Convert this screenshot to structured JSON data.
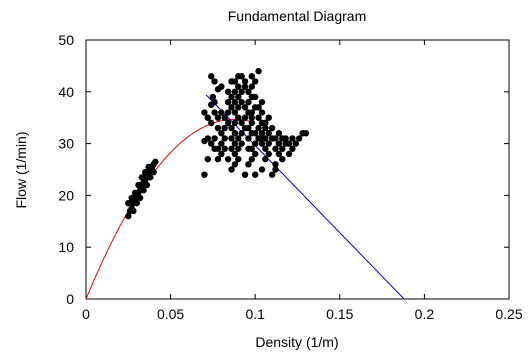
{
  "chart_data": {
    "type": "scatter",
    "title": "Fundamental Diagram",
    "xlabel": "Density (1/m)",
    "ylabel": "Flow (1/min)",
    "xlim": [
      0,
      0.25
    ],
    "ylim": [
      0,
      50
    ],
    "xticks": [
      "0",
      "0.05",
      "0.1",
      "0.15",
      "0.2",
      "0.25"
    ],
    "yticks": [
      "0",
      "10",
      "20",
      "30",
      "40",
      "50"
    ],
    "grid": false,
    "legend": "none",
    "colors": {
      "points": "#000000",
      "fit_free": "#ff0000",
      "fit_congested": "#0000ff"
    },
    "series": [
      {
        "kind": "scatter",
        "points": [
          [
            0.025,
            16
          ],
          [
            0.026,
            17
          ],
          [
            0.027,
            17.5
          ],
          [
            0.028,
            18.5
          ],
          [
            0.029,
            19
          ],
          [
            0.03,
            20
          ],
          [
            0.031,
            20.5
          ],
          [
            0.032,
            21
          ],
          [
            0.033,
            22
          ],
          [
            0.034,
            22.5
          ],
          [
            0.035,
            23
          ],
          [
            0.036,
            24
          ],
          [
            0.037,
            24.5
          ],
          [
            0.038,
            25
          ],
          [
            0.039,
            25.5
          ],
          [
            0.04,
            26
          ],
          [
            0.041,
            26.5
          ],
          [
            0.025,
            18.5
          ],
          [
            0.027,
            19.5
          ],
          [
            0.029,
            20.5
          ],
          [
            0.031,
            22
          ],
          [
            0.033,
            23.5
          ],
          [
            0.035,
            24.5
          ],
          [
            0.037,
            25.5
          ],
          [
            0.039,
            25.5
          ],
          [
            0.028,
            17
          ],
          [
            0.03,
            18.5
          ],
          [
            0.032,
            19.5
          ],
          [
            0.034,
            21
          ],
          [
            0.036,
            22
          ],
          [
            0.038,
            23.5
          ],
          [
            0.04,
            24.5
          ],
          [
            0.07,
            24
          ],
          [
            0.072,
            27
          ],
          [
            0.07,
            30.5
          ],
          [
            0.072,
            31
          ],
          [
            0.074,
            34
          ],
          [
            0.072,
            35
          ],
          [
            0.07,
            36
          ],
          [
            0.074,
            37.5
          ],
          [
            0.076,
            38
          ],
          [
            0.075,
            39
          ],
          [
            0.078,
            27
          ],
          [
            0.08,
            28
          ],
          [
            0.078,
            29
          ],
          [
            0.08,
            30
          ],
          [
            0.082,
            31
          ],
          [
            0.08,
            32
          ],
          [
            0.082,
            33
          ],
          [
            0.084,
            34
          ],
          [
            0.082,
            35
          ],
          [
            0.084,
            36
          ],
          [
            0.086,
            37
          ],
          [
            0.084,
            38
          ],
          [
            0.086,
            39
          ],
          [
            0.088,
            40
          ],
          [
            0.09,
            41
          ],
          [
            0.088,
            42
          ],
          [
            0.078,
            40.5
          ],
          [
            0.076,
            42
          ],
          [
            0.074,
            43
          ],
          [
            0.08,
            41
          ],
          [
            0.076,
            36
          ],
          [
            0.078,
            33
          ],
          [
            0.076,
            31
          ],
          [
            0.078,
            35
          ],
          [
            0.086,
            25
          ],
          [
            0.088,
            26
          ],
          [
            0.09,
            27
          ],
          [
            0.088,
            28
          ],
          [
            0.09,
            29
          ],
          [
            0.092,
            30
          ],
          [
            0.09,
            31
          ],
          [
            0.092,
            32
          ],
          [
            0.094,
            33
          ],
          [
            0.092,
            34
          ],
          [
            0.094,
            35
          ],
          [
            0.096,
            36
          ],
          [
            0.094,
            37
          ],
          [
            0.096,
            38
          ],
          [
            0.098,
            39
          ],
          [
            0.096,
            40
          ],
          [
            0.098,
            41
          ],
          [
            0.1,
            42
          ],
          [
            0.098,
            43
          ],
          [
            0.092,
            43
          ],
          [
            0.094,
            42
          ],
          [
            0.09,
            43
          ],
          [
            0.096,
            26
          ],
          [
            0.098,
            27
          ],
          [
            0.1,
            28
          ],
          [
            0.098,
            29
          ],
          [
            0.1,
            30
          ],
          [
            0.102,
            31
          ],
          [
            0.1,
            32
          ],
          [
            0.102,
            33
          ],
          [
            0.104,
            34
          ],
          [
            0.102,
            35
          ],
          [
            0.104,
            36
          ],
          [
            0.102,
            37
          ],
          [
            0.104,
            38
          ],
          [
            0.1,
            39
          ],
          [
            0.102,
            44
          ],
          [
            0.084,
            27
          ],
          [
            0.086,
            29
          ],
          [
            0.088,
            30
          ],
          [
            0.086,
            31
          ],
          [
            0.088,
            32
          ],
          [
            0.086,
            33
          ],
          [
            0.088,
            34
          ],
          [
            0.09,
            35
          ],
          [
            0.088,
            36
          ],
          [
            0.09,
            37
          ],
          [
            0.092,
            38
          ],
          [
            0.09,
            39
          ],
          [
            0.092,
            40
          ],
          [
            0.094,
            41
          ],
          [
            0.094,
            24
          ],
          [
            0.096,
            29
          ],
          [
            0.096,
            31
          ],
          [
            0.098,
            32
          ],
          [
            0.096,
            33
          ],
          [
            0.098,
            34
          ],
          [
            0.098,
            35
          ],
          [
            0.098,
            36
          ],
          [
            0.1,
            37
          ],
          [
            0.1,
            24
          ],
          [
            0.104,
            25
          ],
          [
            0.104,
            30
          ],
          [
            0.104,
            31
          ],
          [
            0.104,
            32
          ],
          [
            0.106,
            27
          ],
          [
            0.108,
            28
          ],
          [
            0.106,
            29
          ],
          [
            0.108,
            30
          ],
          [
            0.11,
            31
          ],
          [
            0.108,
            32
          ],
          [
            0.11,
            33
          ],
          [
            0.106,
            34
          ],
          [
            0.108,
            35
          ],
          [
            0.106,
            33
          ],
          [
            0.106,
            31
          ],
          [
            0.112,
            29
          ],
          [
            0.114,
            30
          ],
          [
            0.112,
            31
          ],
          [
            0.114,
            32
          ],
          [
            0.116,
            31
          ],
          [
            0.118,
            30
          ],
          [
            0.116,
            29
          ],
          [
            0.12,
            28
          ],
          [
            0.118,
            31
          ],
          [
            0.12,
            30
          ],
          [
            0.122,
            29
          ],
          [
            0.124,
            30
          ],
          [
            0.122,
            31
          ],
          [
            0.126,
            31
          ],
          [
            0.128,
            32
          ],
          [
            0.13,
            32
          ],
          [
            0.11,
            24
          ],
          [
            0.112,
            26
          ],
          [
            0.116,
            27
          ],
          [
            0.114,
            28
          ],
          [
            0.112,
            25
          ],
          [
            0.082,
            29
          ],
          [
            0.08,
            36
          ],
          [
            0.084,
            40
          ],
          [
            0.086,
            42
          ],
          [
            0.088,
            38
          ],
          [
            0.076,
            29
          ],
          [
            0.074,
            30
          ]
        ]
      },
      {
        "kind": "line",
        "x": [
          0,
          0.005,
          0.01,
          0.015,
          0.02,
          0.025,
          0.03,
          0.035,
          0.04,
          0.045,
          0.05,
          0.055,
          0.06,
          0.065,
          0.07,
          0.075,
          0.08,
          0.085,
          0.09,
          0.095,
          0.1
        ],
        "y": [
          0,
          3.85,
          7.47,
          10.87,
          14.04,
          16.98,
          19.7,
          22.19,
          24.45,
          26.49,
          28.3,
          29.89,
          31.25,
          32.38,
          33.29,
          33.98,
          34.44,
          34.68,
          34.69,
          34.48,
          34.04
        ]
      },
      {
        "kind": "line",
        "x": [
          0.071,
          0.188
        ],
        "y": [
          39.4,
          0
        ]
      }
    ]
  }
}
